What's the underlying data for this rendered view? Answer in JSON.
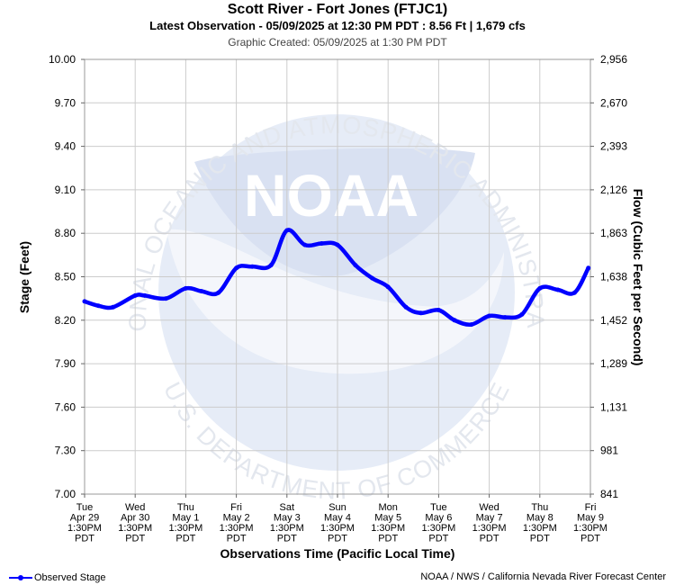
{
  "header": {
    "title": "Scott River - Fort Jones (FTJC1)",
    "subtitle": "Latest Observation - 05/09/2025 at 12:30 PM PDT : 8.56 Ft | 1,679 cfs",
    "created": "Graphic Created: 05/09/2025 at 1:30 PM PDT"
  },
  "footer": {
    "legend_label": "Observed Stage",
    "source": "NOAA / NWS / California Nevada River Forecast Center"
  },
  "watermark": {
    "logo_text": "NOAA",
    "ring_top": "NATIONAL OCEANIC AND ATMOSPHERIC ADMINISTRATION",
    "ring_bottom": "U.S. DEPARTMENT OF COMMERCE"
  },
  "colors": {
    "series": "#0000ff",
    "grid": "#cccccc",
    "watermark": "#e6ecf7"
  },
  "chart_data": {
    "type": "line",
    "title": "Scott River - Fort Jones (FTJC1)",
    "xlabel": "Observations Time (Pacific Local Time)",
    "ylabel": "Stage (Feet)",
    "y2label": "Flow (Cubic Feet per Second)",
    "ylim": [
      7.0,
      10.0
    ],
    "y_ticks": [
      "7.00",
      "7.30",
      "7.60",
      "7.90",
      "8.20",
      "8.50",
      "8.80",
      "9.10",
      "9.40",
      "9.70",
      "10.00"
    ],
    "y2_ticks": [
      "841",
      "981",
      "1,131",
      "1,289",
      "1,452",
      "1,638",
      "1,863",
      "2,126",
      "2,393",
      "2,670",
      "2,956"
    ],
    "x_ticks": [
      [
        "Tue",
        "Apr 29",
        "1:30PM",
        "PDT"
      ],
      [
        "Wed",
        "Apr 30",
        "1:30PM",
        "PDT"
      ],
      [
        "Thu",
        "May 1",
        "1:30PM",
        "PDT"
      ],
      [
        "Fri",
        "May 2",
        "1:30PM",
        "PDT"
      ],
      [
        "Sat",
        "May 3",
        "1:30PM",
        "PDT"
      ],
      [
        "Sun",
        "May 4",
        "1:30PM",
        "PDT"
      ],
      [
        "Mon",
        "May 5",
        "1:30PM",
        "PDT"
      ],
      [
        "Tue",
        "May 6",
        "1:30PM",
        "PDT"
      ],
      [
        "Wed",
        "May 7",
        "1:30PM",
        "PDT"
      ],
      [
        "Thu",
        "May 8",
        "1:30PM",
        "PDT"
      ],
      [
        "Fri",
        "May 9",
        "1:30PM",
        "PDT"
      ]
    ],
    "grid": true,
    "legend_position": "bottom-left",
    "series": [
      {
        "name": "Observed Stage",
        "x": [
          "2025-04-29 13:30",
          "2025-04-29 20:00",
          "2025-04-30 03:00",
          "2025-04-30 13:30",
          "2025-04-30 18:00",
          "2025-05-01 04:00",
          "2025-05-01 13:30",
          "2025-05-01 21:00",
          "2025-05-02 05:00",
          "2025-05-02 13:30",
          "2025-05-02 21:00",
          "2025-05-03 06:00",
          "2025-05-03 13:30",
          "2025-05-03 22:00",
          "2025-05-04 06:00",
          "2025-05-04 13:30",
          "2025-05-04 22:00",
          "2025-05-05 06:00",
          "2025-05-05 13:30",
          "2025-05-05 22:00",
          "2025-05-06 05:00",
          "2025-05-06 13:30",
          "2025-05-06 21:00",
          "2025-05-07 05:00",
          "2025-05-07 13:30",
          "2025-05-07 21:00",
          "2025-05-08 05:00",
          "2025-05-08 13:30",
          "2025-05-08 22:00",
          "2025-05-09 06:00",
          "2025-05-09 12:30"
        ],
        "y": [
          8.33,
          8.3,
          8.29,
          8.37,
          8.37,
          8.35,
          8.42,
          8.4,
          8.39,
          8.56,
          8.57,
          8.58,
          8.82,
          8.72,
          8.73,
          8.72,
          8.58,
          8.49,
          8.43,
          8.29,
          8.25,
          8.27,
          8.2,
          8.17,
          8.23,
          8.22,
          8.24,
          8.42,
          8.41,
          8.39,
          8.56
        ]
      }
    ]
  }
}
